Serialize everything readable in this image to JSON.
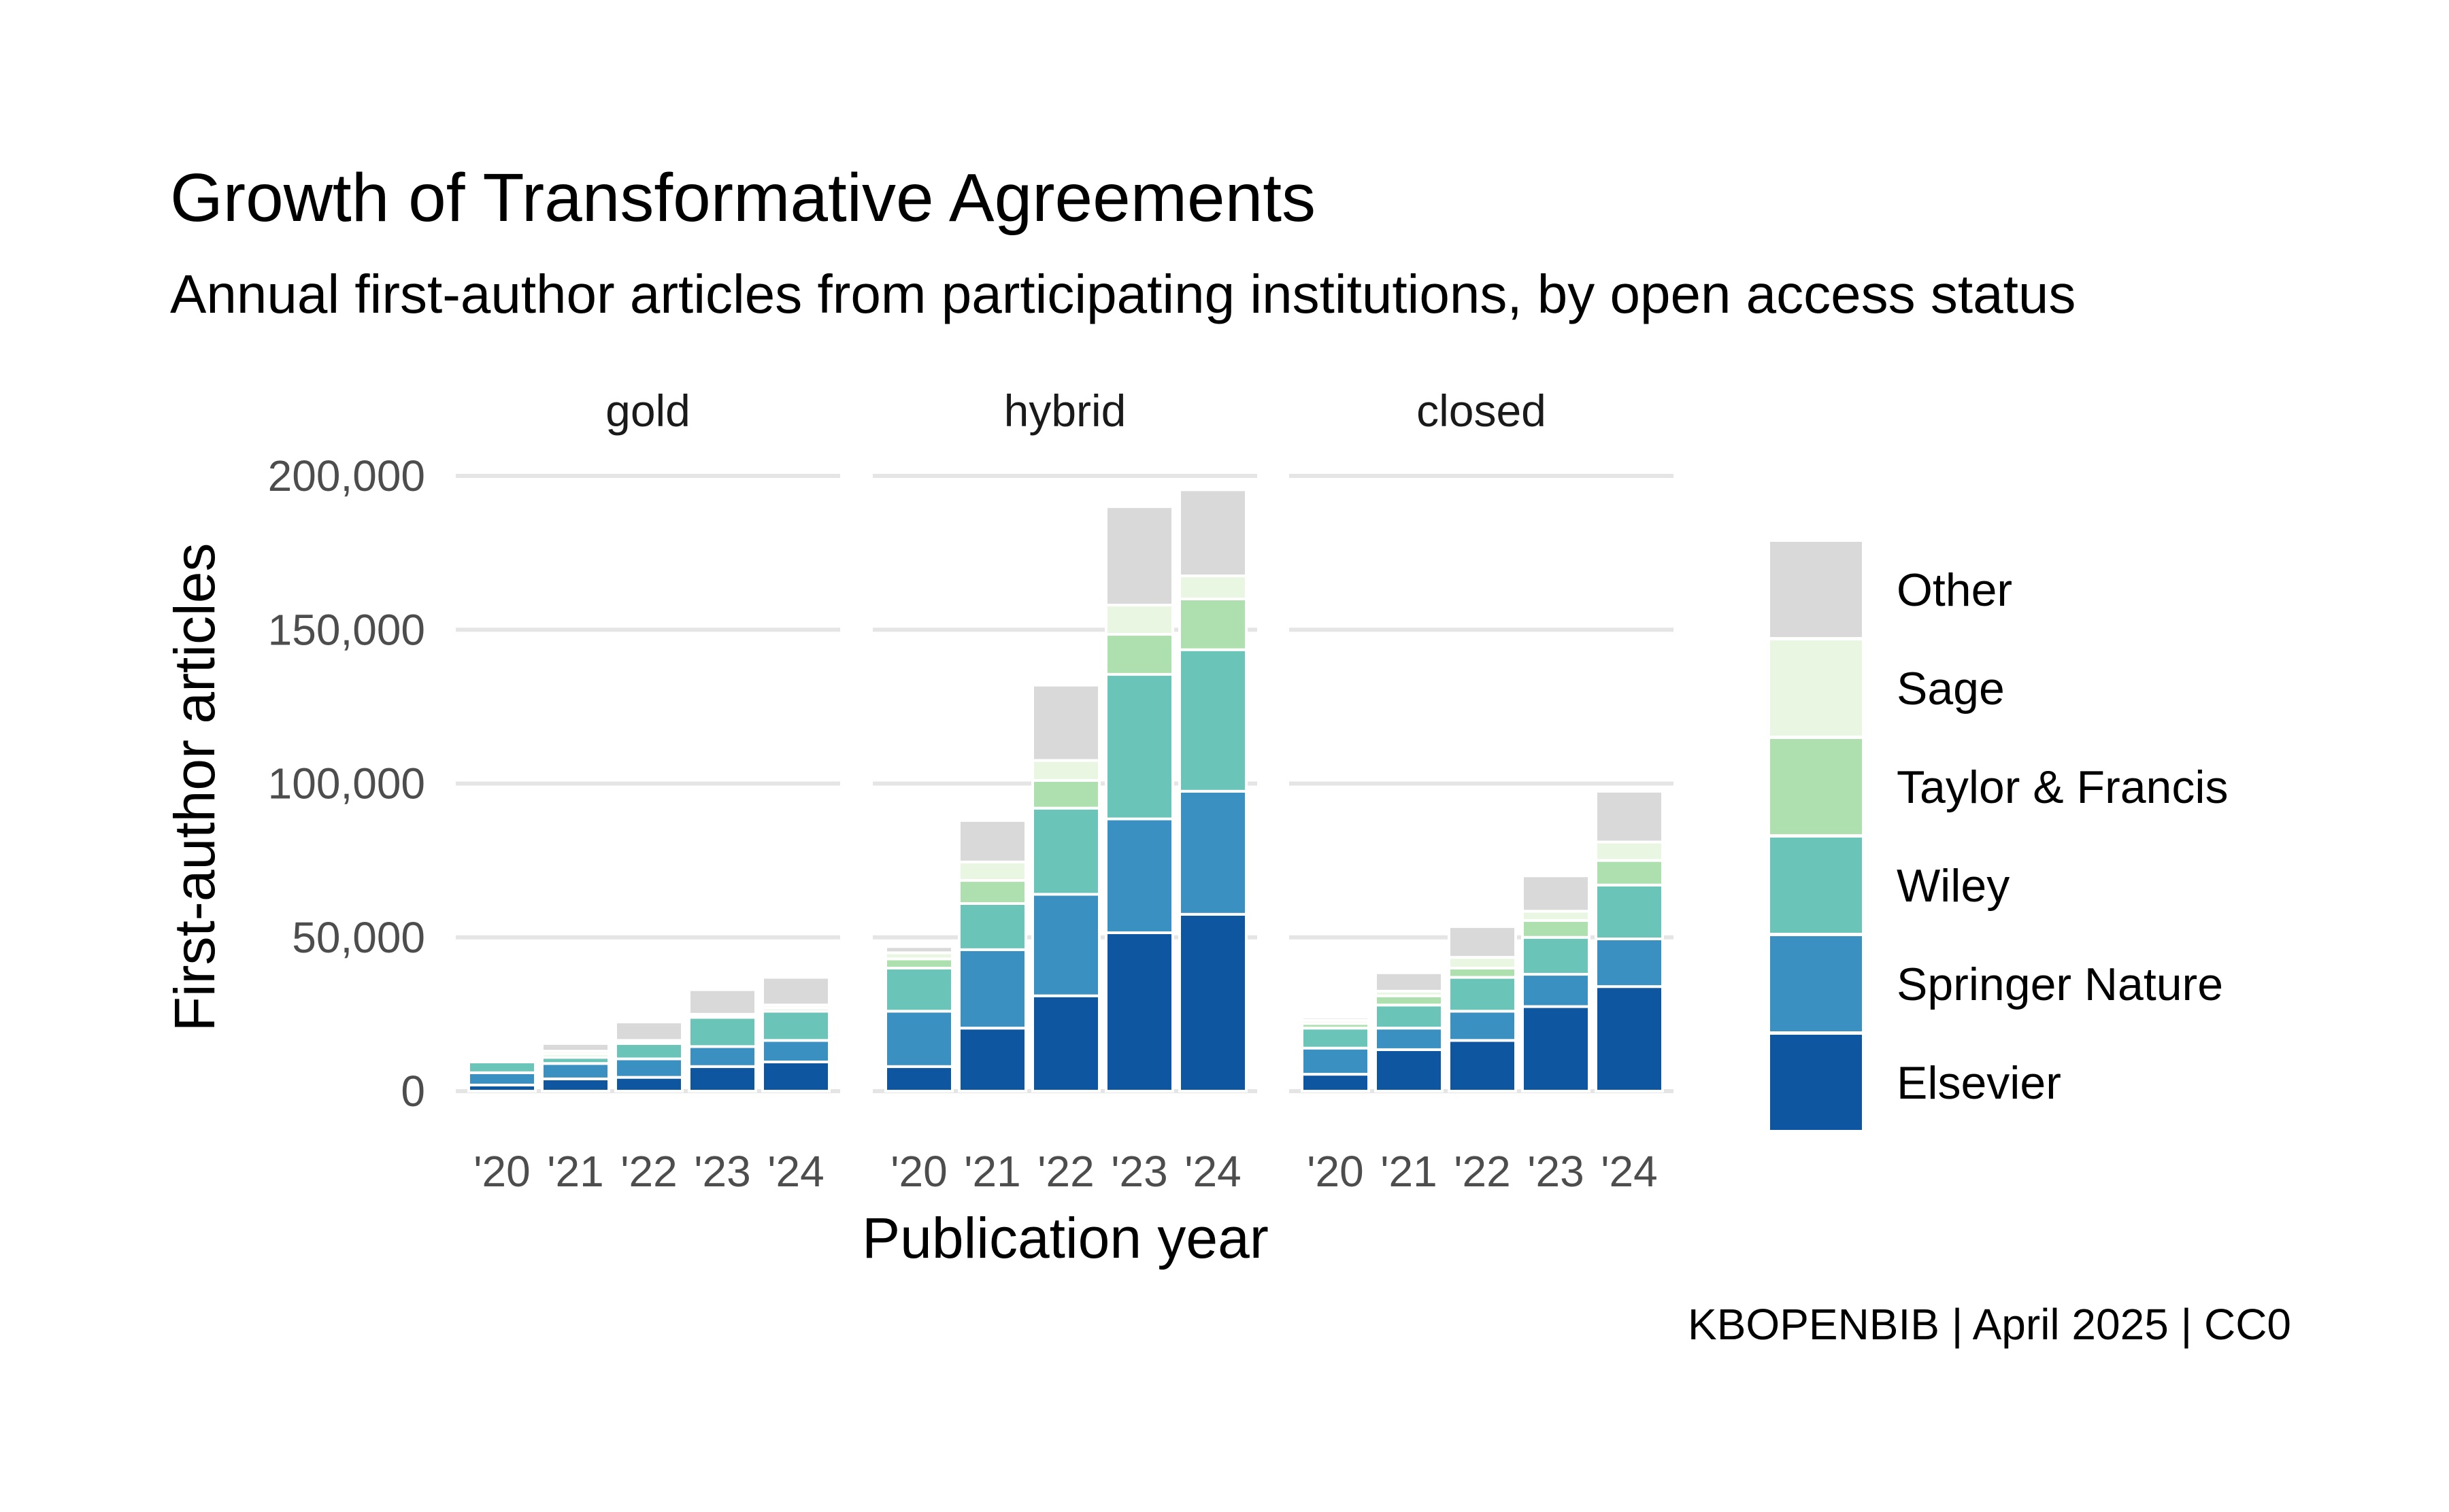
{
  "chart_data": {
    "type": "bar",
    "stacked": true,
    "title": "Growth of Transformative Agreements",
    "subtitle": "Annual first-author articles from participating institutions, by open access status",
    "xlabel": "Publication year",
    "ylabel": "First-author articles",
    "caption": "KBOPENBIB | April 2025 | CC0",
    "ylim": [
      0,
      200000
    ],
    "y_ticks": [
      0,
      50000,
      100000,
      150000,
      200000
    ],
    "y_tick_labels": [
      "0",
      "50,000",
      "100,000",
      "150,000",
      "200,000"
    ],
    "categories": [
      "'20",
      "'21",
      "'22",
      "'23",
      "'24"
    ],
    "grid": true,
    "legend_position": "right",
    "facets": [
      {
        "name": "gold",
        "series": [
          {
            "name": "Elsevier",
            "values": [
              2000,
              4000,
              4500,
              8000,
              9500
            ]
          },
          {
            "name": "Springer Nature",
            "values": [
              4000,
              5000,
              6000,
              6500,
              7000
            ]
          },
          {
            "name": "Wiley",
            "values": [
              3500,
              2000,
              5000,
              9500,
              9500
            ]
          },
          {
            "name": "Taylor & Francis",
            "values": [
              300,
              1000,
              500,
              700,
              1000
            ]
          },
          {
            "name": "Sage",
            "values": [
              200,
              1000,
              500,
              300,
              1000
            ]
          },
          {
            "name": "Other",
            "values": [
              0,
              2500,
              6000,
              8000,
              9000
            ]
          }
        ]
      },
      {
        "name": "hybrid",
        "series": [
          {
            "name": "Elsevier",
            "values": [
              8000,
              20500,
              31000,
              51500,
              57500
            ]
          },
          {
            "name": "Springer Nature",
            "values": [
              18000,
              25500,
              33000,
              37000,
              40000
            ]
          },
          {
            "name": "Wiley",
            "values": [
              14000,
              15000,
              28000,
              47000,
              46000
            ]
          },
          {
            "name": "Taylor & Francis",
            "values": [
              3000,
              7500,
              9000,
              13000,
              16500
            ]
          },
          {
            "name": "Sage",
            "values": [
              2000,
              6000,
              6500,
              9500,
              7500
            ]
          },
          {
            "name": "Other",
            "values": [
              2000,
              13500,
              24500,
              32000,
              28000
            ]
          }
        ]
      },
      {
        "name": "closed",
        "series": [
          {
            "name": "Elsevier",
            "values": [
              5500,
              13500,
              16500,
              27500,
              34000
            ]
          },
          {
            "name": "Springer Nature",
            "values": [
              8500,
              7000,
              9500,
              10500,
              15500
            ]
          },
          {
            "name": "Wiley",
            "values": [
              6500,
              7500,
              11000,
              12000,
              17500
            ]
          },
          {
            "name": "Taylor & Francis",
            "values": [
              1500,
              3000,
              3000,
              5500,
              8000
            ]
          },
          {
            "name": "Sage",
            "values": [
              1000,
              1500,
              3500,
              3000,
              6000
            ]
          },
          {
            "name": "Other",
            "values": [
              1000,
              6000,
              10000,
              11500,
              16500
            ]
          }
        ]
      }
    ],
    "series_colors": {
      "Elsevier": "#0f56a0",
      "Springer Nature": "#3a90c0",
      "Wiley": "#6bc4b8",
      "Taylor & Francis": "#aee0af",
      "Sage": "#e9f7e2",
      "Other": "#d9d9d9"
    },
    "legend_order": [
      "Other",
      "Sage",
      "Taylor & Francis",
      "Wiley",
      "Springer Nature",
      "Elsevier"
    ]
  }
}
